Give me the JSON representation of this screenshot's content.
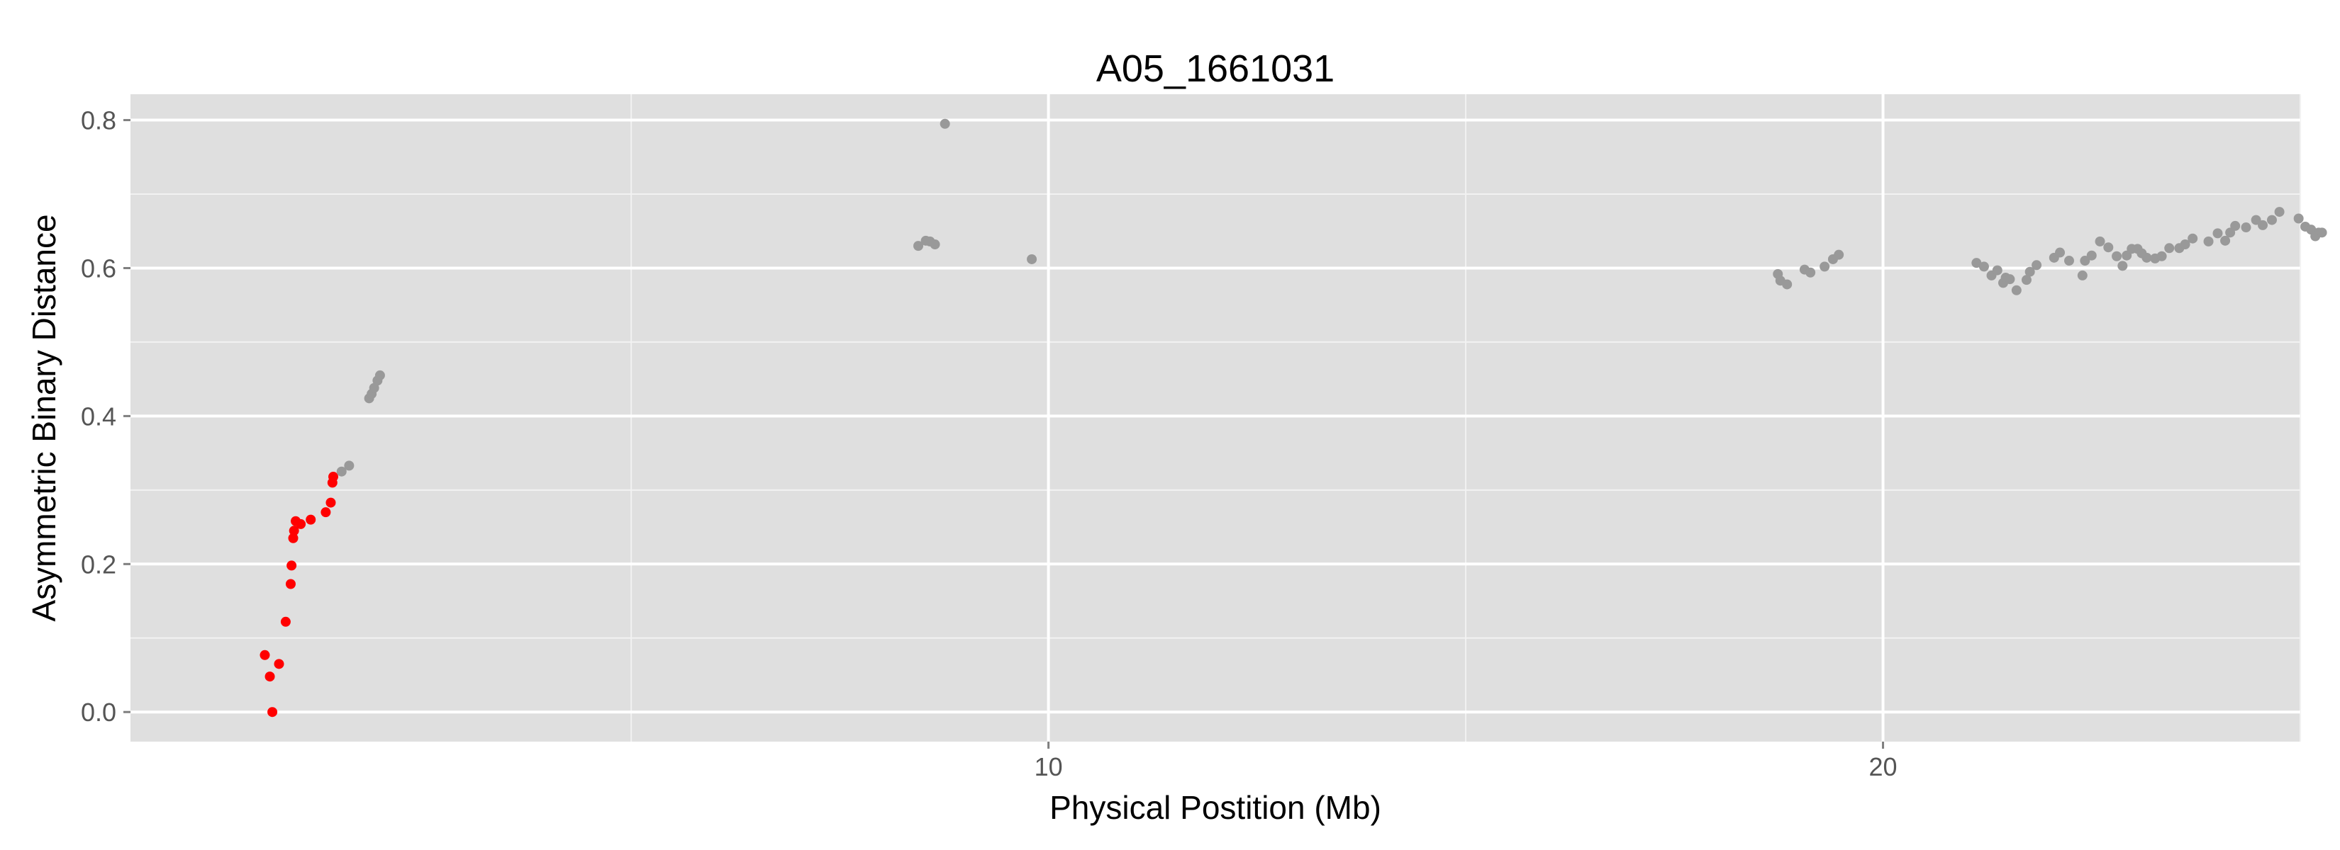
{
  "chart_data": {
    "type": "scatter",
    "title": "A05_1661031",
    "xlabel": "Physical Postition (Mb)",
    "ylabel": "Asymmetric Binary Distance",
    "xlim": [
      -1.0,
      25.0
    ],
    "ylim": [
      -0.04,
      0.835
    ],
    "x_ticks": [
      10,
      20
    ],
    "x_tick_labels": [
      "10",
      "20"
    ],
    "y_ticks": [
      0.0,
      0.2,
      0.4,
      0.6,
      0.8
    ],
    "y_tick_labels": [
      "0.0",
      "0.2",
      "0.4",
      "0.6",
      "0.8"
    ],
    "x_minor_ticks": [
      5,
      15,
      25
    ],
    "y_minor_ticks": [
      0.1,
      0.3,
      0.5,
      0.7
    ],
    "grid": true,
    "panel_color": "#DFDFDF",
    "grid_color": "#FFFFFF",
    "series": [
      {
        "color": "#FF0000",
        "points": [
          [
            0.61,
            0.077
          ],
          [
            0.67,
            0.048
          ],
          [
            0.7,
            0.0
          ],
          [
            0.78,
            0.065
          ],
          [
            0.86,
            0.122
          ],
          [
            0.92,
            0.173
          ],
          [
            0.93,
            0.198
          ],
          [
            0.95,
            0.235
          ],
          [
            0.96,
            0.245
          ],
          [
            0.98,
            0.258
          ],
          [
            1.04,
            0.254
          ],
          [
            1.16,
            0.26
          ],
          [
            1.34,
            0.27
          ],
          [
            1.4,
            0.283
          ],
          [
            1.42,
            0.31
          ],
          [
            1.43,
            0.318
          ]
        ]
      },
      {
        "color": "#999999",
        "points": [
          [
            1.53,
            0.325
          ],
          [
            1.62,
            0.333
          ],
          [
            1.86,
            0.424
          ],
          [
            1.89,
            0.43
          ],
          [
            1.92,
            0.438
          ],
          [
            1.96,
            0.448
          ],
          [
            1.99,
            0.455
          ],
          [
            8.44,
            0.63
          ],
          [
            8.53,
            0.637
          ],
          [
            8.58,
            0.636
          ],
          [
            8.64,
            0.632
          ],
          [
            8.76,
            0.795
          ],
          [
            9.8,
            0.612
          ],
          [
            18.74,
            0.592
          ],
          [
            18.77,
            0.583
          ],
          [
            18.85,
            0.578
          ],
          [
            19.06,
            0.598
          ],
          [
            19.13,
            0.594
          ],
          [
            19.3,
            0.602
          ],
          [
            19.4,
            0.612
          ],
          [
            19.47,
            0.618
          ],
          [
            21.12,
            0.607
          ],
          [
            21.21,
            0.602
          ],
          [
            21.3,
            0.59
          ],
          [
            21.37,
            0.597
          ],
          [
            21.44,
            0.58
          ],
          [
            21.47,
            0.587
          ],
          [
            21.52,
            0.585
          ],
          [
            21.6,
            0.57
          ],
          [
            21.72,
            0.584
          ],
          [
            21.76,
            0.595
          ],
          [
            21.84,
            0.604
          ],
          [
            22.05,
            0.614
          ],
          [
            22.12,
            0.621
          ],
          [
            22.23,
            0.61
          ],
          [
            22.39,
            0.59
          ],
          [
            22.42,
            0.61
          ],
          [
            22.5,
            0.617
          ],
          [
            22.6,
            0.636
          ],
          [
            22.7,
            0.628
          ],
          [
            22.8,
            0.616
          ],
          [
            22.87,
            0.603
          ],
          [
            22.92,
            0.617
          ],
          [
            22.98,
            0.626
          ],
          [
            23.05,
            0.626
          ],
          [
            23.1,
            0.62
          ],
          [
            23.16,
            0.614
          ],
          [
            23.26,
            0.613
          ],
          [
            23.34,
            0.616
          ],
          [
            23.43,
            0.627
          ],
          [
            23.55,
            0.627
          ],
          [
            23.62,
            0.632
          ],
          [
            23.71,
            0.64
          ],
          [
            23.9,
            0.636
          ],
          [
            24.01,
            0.647
          ],
          [
            24.1,
            0.637
          ],
          [
            24.16,
            0.648
          ],
          [
            24.22,
            0.657
          ],
          [
            24.35,
            0.655
          ],
          [
            24.47,
            0.665
          ],
          [
            24.55,
            0.658
          ],
          [
            24.66,
            0.665
          ],
          [
            24.75,
            0.676
          ],
          [
            24.98,
            0.667
          ],
          [
            25.06,
            0.656
          ],
          [
            25.13,
            0.652
          ],
          [
            25.18,
            0.643
          ],
          [
            25.22,
            0.648
          ],
          [
            25.26,
            0.648
          ]
        ]
      }
    ]
  }
}
